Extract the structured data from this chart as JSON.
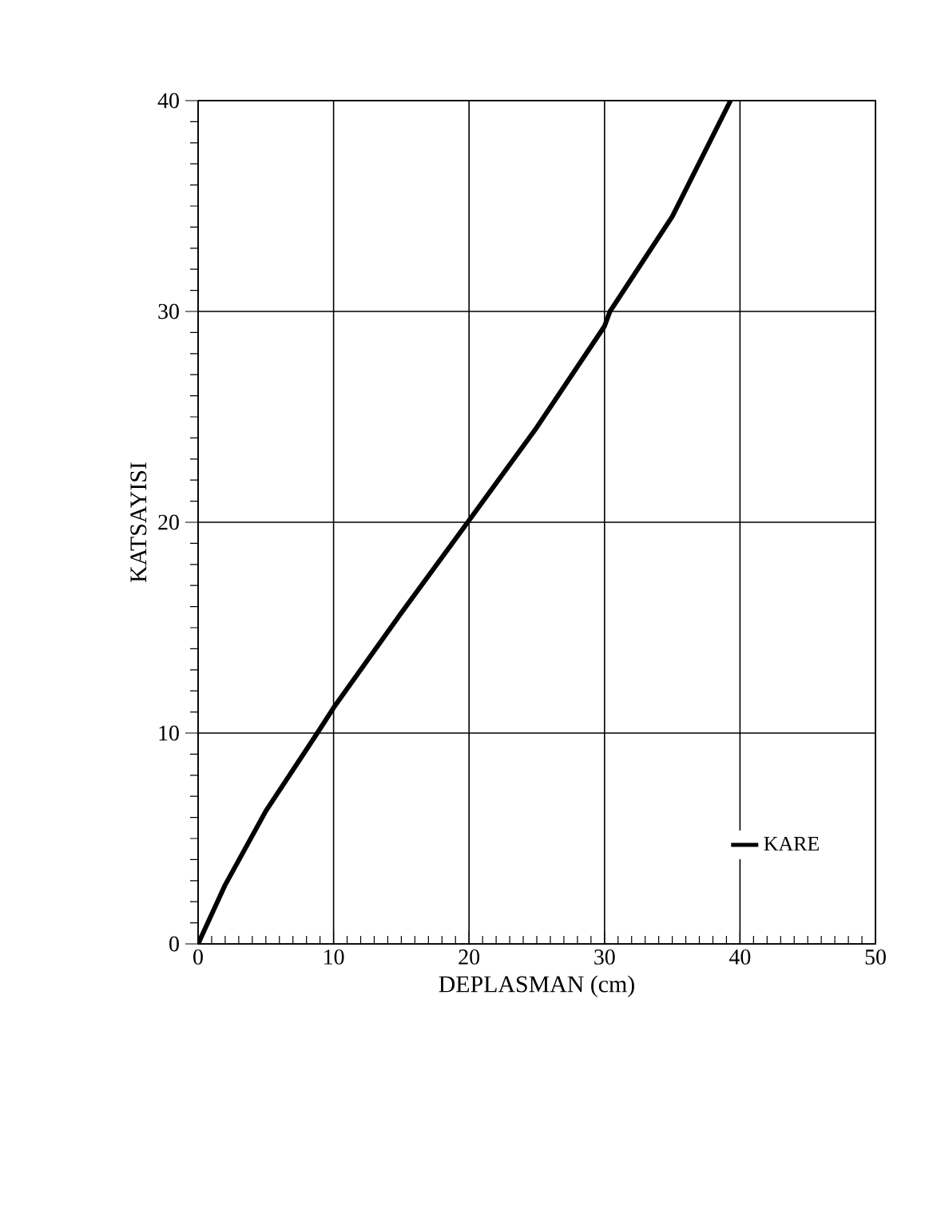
{
  "chart_data": {
    "type": "line",
    "xlabel": "DEPLASMAN (cm)",
    "ylabel": "KATSAYISI",
    "xlim": [
      0,
      50
    ],
    "ylim": [
      0,
      40
    ],
    "xticks": [
      0,
      10,
      20,
      30,
      40,
      50
    ],
    "yticks": [
      0,
      10,
      20,
      30,
      40
    ],
    "grid": true,
    "legend": "bottom right",
    "marker": "none",
    "line_style": "solid",
    "x": [
      0,
      2,
      5,
      8.8,
      10,
      15,
      19.9,
      25,
      30,
      30.4,
      35,
      39.3
    ],
    "series": [
      {
        "name": "KARE",
        "color": "#000000",
        "values": [
          0,
          2.8,
          6.3,
          10,
          11.2,
          15.7,
          20,
          24.5,
          29.3,
          30,
          34.5,
          40
        ]
      }
    ]
  }
}
